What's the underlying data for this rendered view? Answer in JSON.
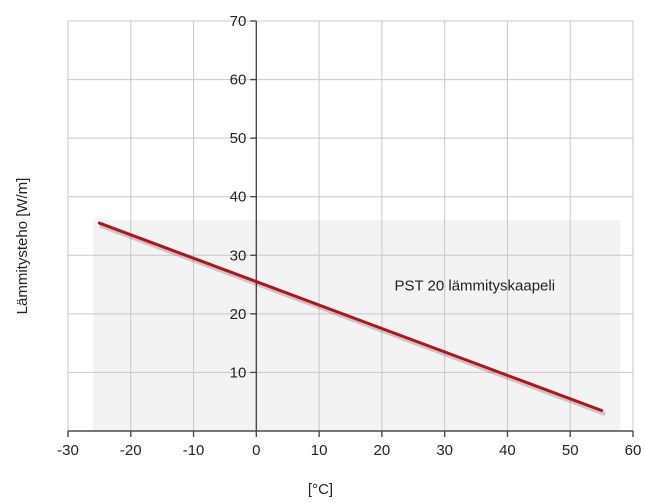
{
  "chart_data": {
    "type": "line",
    "title": "",
    "xlabel": "[°C]",
    "ylabel": "Lämmitysteho [W/m]",
    "xlim": [
      -30,
      60
    ],
    "ylim": [
      0,
      70
    ],
    "x_ticks": [
      "-30",
      "-20",
      "-10",
      "0",
      "10",
      "20",
      "30",
      "40",
      "50",
      "60"
    ],
    "y_ticks": [
      "10",
      "20",
      "30",
      "40",
      "50",
      "60",
      "70"
    ],
    "grid": true,
    "shaded_region": {
      "x": [
        -26,
        58
      ],
      "y": [
        0,
        36
      ],
      "color": "#f3f3f3"
    },
    "series": [
      {
        "name": "PST 20 lämmityskaapeli",
        "color": "#b5121b",
        "x": [
          -25,
          55
        ],
        "y": [
          35.5,
          3.5
        ]
      }
    ],
    "annotations": [
      {
        "text": "PST 20 lämmityskaapeli",
        "x": 22,
        "y": 24
      }
    ]
  }
}
